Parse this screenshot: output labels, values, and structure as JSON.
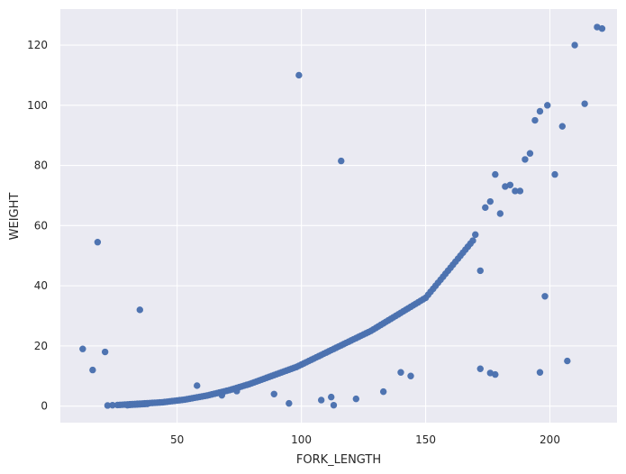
{
  "chart_data": {
    "type": "scatter",
    "title": "",
    "xlabel": "FORK_LENGTH",
    "ylabel": "WEIGHT",
    "xlim": [
      3,
      227
    ],
    "ylim": [
      -5.5,
      132
    ],
    "xticks": [
      50,
      100,
      150,
      200
    ],
    "yticks": [
      0,
      20,
      40,
      60,
      80,
      100,
      120
    ],
    "xtick_labels": [
      "50",
      "100",
      "150",
      "200"
    ],
    "ytick_labels": [
      "0",
      "20",
      "40",
      "60",
      "80",
      "100",
      "120"
    ],
    "grid": true,
    "legend": "none",
    "point_color": "#4c72b0",
    "background_color": "#eaeaf2",
    "x": [
      22,
      24,
      26,
      27,
      28,
      29,
      30,
      30,
      31,
      31,
      32,
      32,
      33,
      33,
      34,
      34,
      35,
      35,
      36,
      36,
      37,
      37,
      38,
      38,
      39,
      40,
      41,
      42,
      43,
      44,
      45,
      46,
      47,
      48,
      49,
      50,
      51,
      52,
      53,
      54,
      55,
      56,
      57,
      58,
      59,
      60,
      61,
      62,
      63,
      64,
      65,
      66,
      67,
      68,
      69,
      70,
      71,
      72,
      73,
      74,
      75,
      76,
      77,
      78,
      79,
      80,
      81,
      82,
      83,
      84,
      85,
      86,
      87,
      88,
      89,
      90,
      91,
      92,
      93,
      94,
      95,
      96,
      97,
      98,
      99,
      100,
      101,
      102,
      103,
      104,
      105,
      106,
      107,
      108,
      109,
      110,
      111,
      112,
      113,
      114,
      115,
      116,
      117,
      118,
      119,
      120,
      121,
      122,
      123,
      124,
      125,
      126,
      127,
      128,
      129,
      130,
      131,
      132,
      133,
      134,
      135,
      136,
      137,
      138,
      139,
      140,
      141,
      142,
      143,
      144,
      145,
      146,
      147,
      148,
      149,
      150,
      151,
      152,
      153,
      154,
      155,
      156,
      157,
      158,
      159,
      160,
      161,
      162,
      163,
      164,
      165,
      166,
      167,
      168,
      169,
      170,
      172,
      174,
      176,
      178,
      180,
      182,
      184,
      186,
      188,
      190,
      192,
      194,
      196,
      199,
      202,
      205,
      210,
      214,
      219,
      221,
      12,
      16,
      18,
      21,
      35,
      99,
      116,
      176,
      196,
      198,
      207,
      140,
      144,
      133,
      112,
      113,
      122,
      108,
      95,
      89,
      74,
      68,
      58,
      178,
      172
    ],
    "y": [
      0.2,
      0.3,
      0.35,
      0.4,
      0.45,
      0.5,
      0.55,
      0.3,
      0.6,
      0.4,
      0.65,
      0.45,
      0.7,
      0.5,
      0.75,
      0.55,
      0.8,
      0.6,
      0.85,
      0.65,
      0.9,
      0.7,
      0.95,
      0.75,
      1.0,
      1.05,
      1.1,
      1.15,
      1.2,
      1.25,
      1.35,
      1.45,
      1.55,
      1.65,
      1.75,
      1.85,
      1.95,
      2.05,
      2.15,
      2.3,
      2.45,
      2.6,
      2.75,
      2.9,
      3.05,
      3.2,
      3.35,
      3.5,
      3.7,
      3.9,
      4.1,
      4.3,
      4.5,
      4.7,
      4.9,
      5.1,
      5.3,
      5.55,
      5.8,
      6.05,
      6.3,
      6.55,
      6.8,
      7.05,
      7.3,
      7.6,
      7.9,
      8.2,
      8.5,
      8.8,
      9.1,
      9.4,
      9.7,
      10.0,
      10.3,
      10.6,
      10.9,
      11.2,
      11.5,
      11.8,
      12.1,
      12.4,
      12.7,
      13.0,
      13.4,
      13.8,
      14.2,
      14.6,
      15.0,
      15.4,
      15.8,
      16.2,
      16.6,
      17.0,
      17.4,
      17.8,
      18.2,
      18.6,
      19.0,
      19.4,
      19.8,
      20.2,
      20.6,
      21.0,
      21.4,
      21.8,
      22.2,
      22.6,
      23.0,
      23.4,
      23.8,
      24.2,
      24.6,
      25.0,
      25.5,
      26.0,
      26.5,
      27.0,
      27.5,
      28.0,
      28.5,
      29.0,
      29.5,
      30.0,
      30.5,
      31.0,
      31.5,
      32.0,
      32.5,
      33.0,
      33.5,
      34.0,
      34.5,
      35.0,
      35.5,
      36.0,
      37.0,
      38.0,
      39.0,
      40.0,
      41.0,
      42.0,
      43.0,
      44.0,
      45.0,
      46.0,
      47.0,
      48.0,
      49.0,
      50.0,
      51.0,
      52.0,
      53.0,
      54.0,
      55.0,
      57.0,
      45.0,
      66.0,
      68.0,
      77.0,
      64.0,
      73.0,
      73.5,
      71.5,
      71.5,
      82.0,
      84.0,
      95.0,
      98.0,
      100.0,
      77.0,
      93.0,
      120.0,
      100.5,
      126.0,
      125.5,
      19.0,
      12.0,
      54.5,
      18.0,
      32.0,
      110.0,
      81.5,
      11.0,
      11.2,
      36.5,
      15.0,
      11.2,
      10.0,
      4.8,
      3.0,
      0.3,
      2.4,
      2.0,
      0.9,
      4.0,
      5.0,
      3.6,
      6.8,
      10.5,
      12.4
    ]
  }
}
